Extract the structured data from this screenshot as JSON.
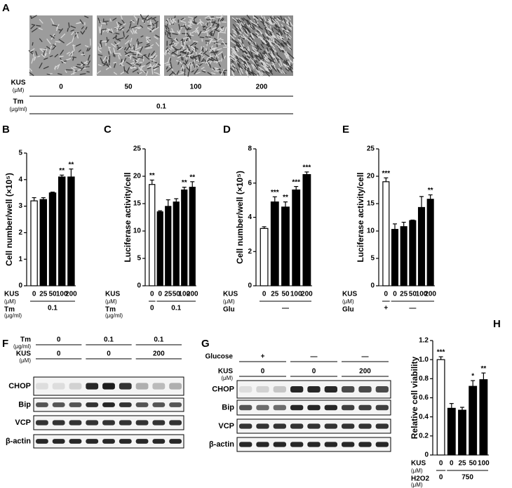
{
  "panel_a": {
    "letter": "A",
    "rows": [
      {
        "label": "KUS",
        "unit": "(μM)",
        "values": [
          "0",
          "50",
          "100",
          "200"
        ]
      },
      {
        "label": "Tm",
        "unit": "(μg/ml)",
        "values": [
          "0.1"
        ]
      }
    ]
  },
  "chart_data": [
    {
      "type": "bar",
      "letter": "B",
      "ylabel": "Cell number/well (×10⁵)",
      "categories": [
        "0",
        "25",
        "50",
        "100",
        "200"
      ],
      "values": [
        3.2,
        3.25,
        3.5,
        4.1,
        4.1
      ],
      "errors": [
        0.12,
        0.07,
        0.03,
        0.07,
        0.3
      ],
      "significance": [
        null,
        null,
        null,
        "**",
        "**"
      ],
      "colors": [
        "#ffffff",
        "#000000",
        "#000000",
        "#000000",
        "#000000"
      ],
      "ylim": [
        0,
        5
      ],
      "yticks": [
        0,
        1,
        2,
        3,
        4,
        5
      ],
      "conditions": [
        {
          "label": "KUS",
          "unit": "(μM)"
        },
        {
          "label": "Tm",
          "unit": "(μg/ml)",
          "groups": [
            "0.1"
          ]
        }
      ]
    },
    {
      "type": "bar",
      "letter": "C",
      "ylabel": "Luciferase activity/cell",
      "categories": [
        "0",
        "0",
        "25",
        "50",
        "100",
        "200"
      ],
      "values": [
        18.5,
        13.5,
        14.5,
        15.3,
        17.5,
        18
      ],
      "errors": [
        0.8,
        0.2,
        1.2,
        0.6,
        0.5,
        1
      ],
      "significance": [
        "**",
        null,
        null,
        null,
        "**",
        "**"
      ],
      "colors": [
        "#ffffff",
        "#000000",
        "#000000",
        "#000000",
        "#000000",
        "#000000"
      ],
      "ylim": [
        0,
        25
      ],
      "yticks": [
        0,
        5,
        10,
        15,
        20,
        25
      ],
      "conditions": [
        {
          "label": "KUS",
          "unit": "(μM)"
        },
        {
          "label": "Tm",
          "unit": "(μg/ml)",
          "groups": [
            "0",
            "0.1"
          ]
        }
      ]
    },
    {
      "type": "bar",
      "letter": "D",
      "ylabel": "Cell number/well (×10⁵)",
      "categories": [
        "0",
        "25",
        "50",
        "100",
        "200"
      ],
      "values": [
        3.35,
        4.9,
        4.6,
        5.6,
        6.5
      ],
      "errors": [
        0.1,
        0.3,
        0.3,
        0.2,
        0.15
      ],
      "significance": [
        null,
        "***",
        "**",
        "***",
        "***"
      ],
      "colors": [
        "#ffffff",
        "#000000",
        "#000000",
        "#000000",
        "#000000"
      ],
      "ylim": [
        0,
        8
      ],
      "yticks": [
        0,
        2,
        4,
        6,
        8
      ],
      "conditions": [
        {
          "label": "KUS",
          "unit": "(μM)"
        },
        {
          "label": "Glu",
          "groups": [
            "—"
          ]
        }
      ]
    },
    {
      "type": "bar",
      "letter": "E",
      "ylabel": "Luciferase activity/cell",
      "categories": [
        "0",
        "0",
        "25",
        "50",
        "100",
        "200"
      ],
      "values": [
        19,
        10.3,
        10.8,
        11.9,
        14.3,
        15.8
      ],
      "errors": [
        0.7,
        1,
        0.8,
        0.1,
        2,
        0.8
      ],
      "significance": [
        "***",
        null,
        null,
        null,
        null,
        "**"
      ],
      "colors": [
        "#ffffff",
        "#000000",
        "#000000",
        "#000000",
        "#000000",
        "#000000"
      ],
      "ylim": [
        0,
        25
      ],
      "yticks": [
        0,
        5,
        10,
        15,
        20,
        25
      ],
      "conditions": [
        {
          "label": "KUS",
          "unit": "(μM)"
        },
        {
          "label": "Glu",
          "groups": [
            "+",
            "—"
          ]
        }
      ]
    },
    {
      "type": "bar",
      "letter": "H",
      "ylabel": "Relative cell viability",
      "categories": [
        "0",
        "0",
        "25",
        "50",
        "100"
      ],
      "values": [
        1.0,
        0.49,
        0.47,
        0.72,
        0.79
      ],
      "errors": [
        0.03,
        0.05,
        0.03,
        0.06,
        0.07
      ],
      "significance": [
        "***",
        null,
        null,
        "*",
        "**"
      ],
      "colors": [
        "#ffffff",
        "#000000",
        "#000000",
        "#000000",
        "#000000"
      ],
      "ylim": [
        0,
        1.2
      ],
      "yticks": [
        0,
        0.2,
        0.4,
        0.6,
        0.8,
        {
          "value": 1,
          "label": "1.0"
        },
        1.2
      ],
      "conditions": [
        {
          "label": "KUS",
          "unit": "(μM)"
        },
        {
          "label": "H2O2",
          "unit": "(μM)",
          "groups": [
            "0",
            "750"
          ]
        }
      ]
    }
  ],
  "panel_f": {
    "letter": "F",
    "header_rows": [
      {
        "label": "Tm",
        "unit": "(μg/ml)",
        "groups": [
          "0",
          "0.1",
          "0.1"
        ]
      },
      {
        "label": "KUS",
        "unit": "(μM)",
        "groups": [
          "0",
          "0",
          "200"
        ]
      }
    ],
    "blots": [
      "CHOP",
      "Bip",
      "VCP",
      "β-actin"
    ]
  },
  "panel_g": {
    "letter": "G",
    "header_rows": [
      {
        "label": "Glucose",
        "groups": [
          "+",
          "—",
          "—"
        ]
      },
      {
        "label": "KUS",
        "unit": "(μM)",
        "groups": [
          "0",
          "0",
          "200"
        ]
      }
    ],
    "blots": [
      "CHOP",
      "Bip",
      "VCP",
      "β-actin"
    ]
  }
}
